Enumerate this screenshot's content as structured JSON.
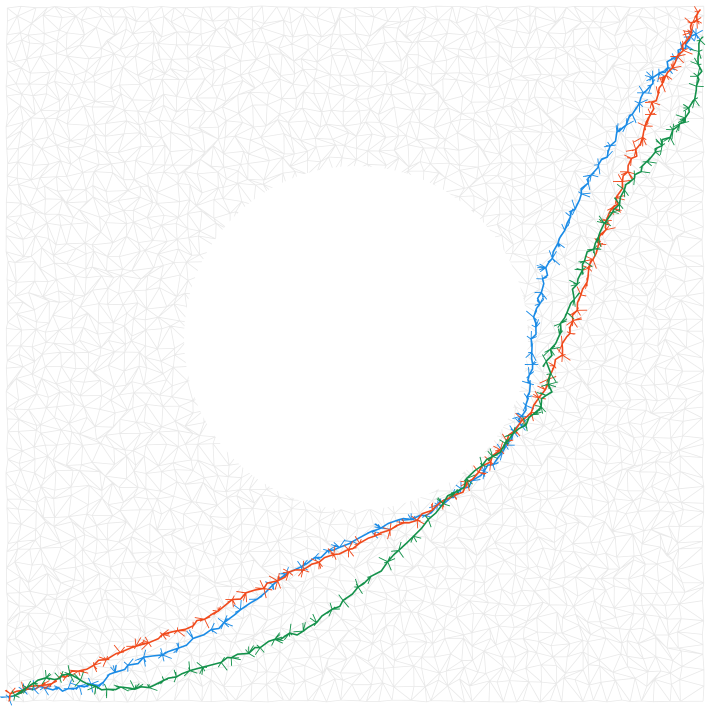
{
  "figure": {
    "background_color": "#ffffff",
    "mesh_color": "#e9e9e9",
    "obstacle": {
      "shape": "circle",
      "fill": "#ffffff"
    },
    "paths": [
      {
        "id": "blue",
        "color": "#1a8be6"
      },
      {
        "id": "red",
        "color": "#f0491b"
      },
      {
        "id": "green",
        "color": "#13914a"
      }
    ]
  }
}
